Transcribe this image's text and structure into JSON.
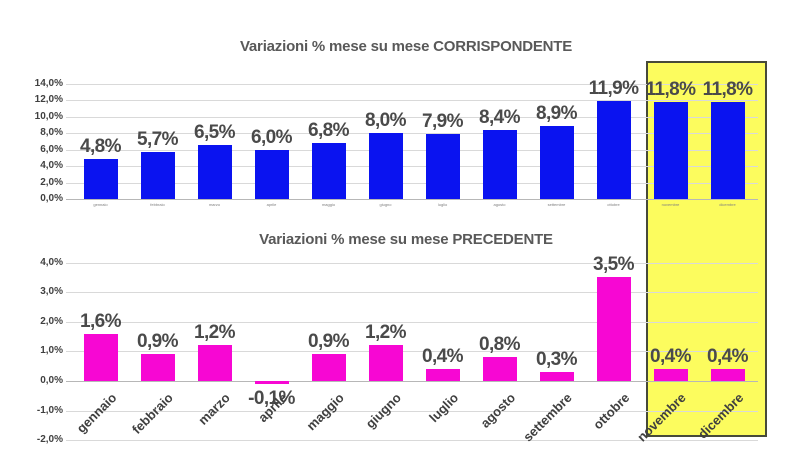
{
  "page": {
    "background": "#ffffff"
  },
  "colors": {
    "bar_blue": "#0a13f0",
    "bar_magenta": "#f707d3",
    "highlight_yellow": "#fcfc5e",
    "highlight_border": "#474a39",
    "title_gray": "#595959",
    "data_label_gray": "#4a4a4a",
    "tick_gray": "#404040",
    "gridline": "#d9d9d9",
    "axis_line": "#b7b7b7"
  },
  "highlight": {
    "months": [
      "novembre",
      "dicembre"
    ]
  },
  "chart_data": [
    {
      "type": "bar",
      "title": "Variazioni % mese su mese CORRISPONDENTE",
      "categories": [
        "gennaio",
        "febbraio",
        "marzo",
        "aprile",
        "maggio",
        "giugno",
        "luglio",
        "agosto",
        "settembre",
        "ottobre",
        "novembre",
        "dicembre"
      ],
      "values": [
        4.8,
        5.7,
        6.5,
        6.0,
        6.8,
        8.0,
        7.9,
        8.4,
        8.9,
        11.9,
        11.8,
        11.8
      ],
      "data_labels": [
        "4,8%",
        "5,7%",
        "6,5%",
        "6,0%",
        "6,8%",
        "8,0%",
        "7,9%",
        "8,4%",
        "8,9%",
        "11,9%",
        "11,8%",
        "11,8%"
      ],
      "xlabel": "",
      "ylabel": "",
      "ylim": [
        0,
        14
      ],
      "ytick_step": 2,
      "ytick_labels": [
        "0,0%",
        "2,0%",
        "4,0%",
        "6,0%",
        "8,0%",
        "10,0%",
        "12,0%",
        "14,0%"
      ],
      "bar_color": "#0a13f0",
      "grid": true,
      "legend": "none"
    },
    {
      "type": "bar",
      "title": "Variazioni % mese su mese PRECEDENTE",
      "categories": [
        "gennaio",
        "febbraio",
        "marzo",
        "aprile",
        "maggio",
        "giugno",
        "luglio",
        "agosto",
        "settembre",
        "ottobre",
        "novembre",
        "dicembre"
      ],
      "values": [
        1.6,
        0.9,
        1.2,
        -0.1,
        0.9,
        1.2,
        0.4,
        0.8,
        0.3,
        3.5,
        0.4,
        0.4
      ],
      "data_labels": [
        "1,6%",
        "0,9%",
        "1,2%",
        "-0,1%",
        "0,9%",
        "1,2%",
        "0,4%",
        "0,8%",
        "0,3%",
        "3,5%",
        "0,4%",
        "0,4%"
      ],
      "xlabel": "",
      "ylabel": "",
      "ylim": [
        -2,
        4
      ],
      "ytick_step": 1,
      "ytick_labels": [
        "-2,0%",
        "-1,0%",
        "0,0%",
        "1,0%",
        "2,0%",
        "3,0%",
        "4,0%"
      ],
      "bar_color": "#f707d3",
      "grid": true,
      "legend": "none"
    }
  ]
}
